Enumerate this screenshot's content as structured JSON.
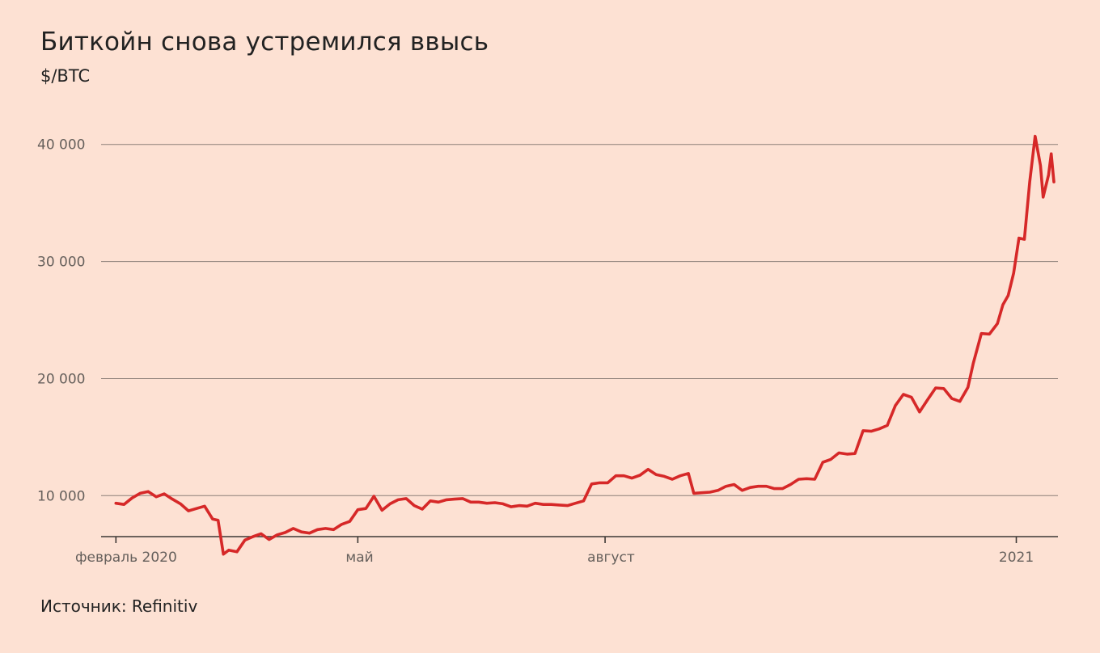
{
  "chart_data": {
    "type": "line",
    "title": "Биткойн снова устремился ввысь",
    "subtitle": "$/BTC",
    "source": "Источник: Refinitiv",
    "xlabel": "",
    "ylabel": "",
    "ylim": [
      6500,
      41500
    ],
    "yticks": [
      {
        "value": 10000,
        "label": "10 000"
      },
      {
        "value": 20000,
        "label": "20 000"
      },
      {
        "value": 30000,
        "label": "30 000"
      },
      {
        "value": 40000,
        "label": "40 000"
      }
    ],
    "xticks": [
      {
        "value": "2020-02-01",
        "label": "февраль 2020"
      },
      {
        "value": "2020-05-01",
        "label": "май"
      },
      {
        "value": "2020-08-01",
        "label": "август"
      },
      {
        "value": "2021-01-01",
        "label": "2021"
      }
    ],
    "grid": true,
    "legend": "none",
    "series": [
      {
        "color": "#d62828",
        "points": [
          [
            "2020-02-01",
            9350
          ],
          [
            "2020-02-04",
            9250
          ],
          [
            "2020-02-07",
            9800
          ],
          [
            "2020-02-10",
            10200
          ],
          [
            "2020-02-13",
            10350
          ],
          [
            "2020-02-16",
            9900
          ],
          [
            "2020-02-19",
            10150
          ],
          [
            "2020-02-22",
            9700
          ],
          [
            "2020-02-25",
            9300
          ],
          [
            "2020-02-28",
            8700
          ],
          [
            "2020-03-02",
            8900
          ],
          [
            "2020-03-05",
            9100
          ],
          [
            "2020-03-08",
            8000
          ],
          [
            "2020-03-10",
            7900
          ],
          [
            "2020-03-12",
            5000
          ],
          [
            "2020-03-14",
            5350
          ],
          [
            "2020-03-17",
            5200
          ],
          [
            "2020-03-20",
            6200
          ],
          [
            "2020-03-23",
            6500
          ],
          [
            "2020-03-26",
            6750
          ],
          [
            "2020-03-29",
            6250
          ],
          [
            "2020-04-01",
            6650
          ],
          [
            "2020-04-04",
            6850
          ],
          [
            "2020-04-07",
            7200
          ],
          [
            "2020-04-10",
            6900
          ],
          [
            "2020-04-13",
            6800
          ],
          [
            "2020-04-16",
            7100
          ],
          [
            "2020-04-19",
            7200
          ],
          [
            "2020-04-22",
            7100
          ],
          [
            "2020-04-25",
            7550
          ],
          [
            "2020-04-28",
            7800
          ],
          [
            "2020-05-01",
            8800
          ],
          [
            "2020-05-04",
            8900
          ],
          [
            "2020-05-07",
            9950
          ],
          [
            "2020-05-10",
            8750
          ],
          [
            "2020-05-13",
            9300
          ],
          [
            "2020-05-16",
            9650
          ],
          [
            "2020-05-19",
            9750
          ],
          [
            "2020-05-22",
            9150
          ],
          [
            "2020-05-25",
            8850
          ],
          [
            "2020-05-28",
            9550
          ],
          [
            "2020-05-31",
            9450
          ],
          [
            "2020-06-03",
            9650
          ],
          [
            "2020-06-06",
            9700
          ],
          [
            "2020-06-09",
            9750
          ],
          [
            "2020-06-12",
            9450
          ],
          [
            "2020-06-15",
            9450
          ],
          [
            "2020-06-18",
            9350
          ],
          [
            "2020-06-21",
            9400
          ],
          [
            "2020-06-24",
            9300
          ],
          [
            "2020-06-27",
            9050
          ],
          [
            "2020-06-30",
            9150
          ],
          [
            "2020-07-03",
            9100
          ],
          [
            "2020-07-06",
            9350
          ],
          [
            "2020-07-09",
            9250
          ],
          [
            "2020-07-12",
            9250
          ],
          [
            "2020-07-15",
            9200
          ],
          [
            "2020-07-18",
            9150
          ],
          [
            "2020-07-21",
            9350
          ],
          [
            "2020-07-24",
            9550
          ],
          [
            "2020-07-27",
            11000
          ],
          [
            "2020-07-30",
            11100
          ],
          [
            "2020-08-02",
            11100
          ],
          [
            "2020-08-05",
            11700
          ],
          [
            "2020-08-08",
            11700
          ],
          [
            "2020-08-11",
            11500
          ],
          [
            "2020-08-14",
            11750
          ],
          [
            "2020-08-17",
            12250
          ],
          [
            "2020-08-20",
            11800
          ],
          [
            "2020-08-23",
            11650
          ],
          [
            "2020-08-26",
            11400
          ],
          [
            "2020-08-29",
            11700
          ],
          [
            "2020-09-01",
            11900
          ],
          [
            "2020-09-03",
            10200
          ],
          [
            "2020-09-06",
            10250
          ],
          [
            "2020-09-09",
            10300
          ],
          [
            "2020-09-12",
            10450
          ],
          [
            "2020-09-15",
            10800
          ],
          [
            "2020-09-18",
            10950
          ],
          [
            "2020-09-21",
            10450
          ],
          [
            "2020-09-24",
            10700
          ],
          [
            "2020-09-27",
            10800
          ],
          [
            "2020-09-30",
            10800
          ],
          [
            "2020-10-03",
            10600
          ],
          [
            "2020-10-06",
            10600
          ],
          [
            "2020-10-09",
            10950
          ],
          [
            "2020-10-12",
            11400
          ],
          [
            "2020-10-15",
            11450
          ],
          [
            "2020-10-18",
            11400
          ],
          [
            "2020-10-21",
            12850
          ],
          [
            "2020-10-24",
            13100
          ],
          [
            "2020-10-27",
            13650
          ],
          [
            "2020-10-30",
            13550
          ],
          [
            "2020-11-02",
            13600
          ],
          [
            "2020-11-05",
            15550
          ],
          [
            "2020-11-08",
            15500
          ],
          [
            "2020-11-11",
            15700
          ],
          [
            "2020-11-14",
            16000
          ],
          [
            "2020-11-17",
            17700
          ],
          [
            "2020-11-20",
            18650
          ],
          [
            "2020-11-23",
            18400
          ],
          [
            "2020-11-26",
            17150
          ],
          [
            "2020-11-29",
            18200
          ],
          [
            "2020-12-02",
            19200
          ],
          [
            "2020-12-05",
            19150
          ],
          [
            "2020-12-08",
            18300
          ],
          [
            "2020-12-11",
            18050
          ],
          [
            "2020-12-14",
            19250
          ],
          [
            "2020-12-16",
            21300
          ],
          [
            "2020-12-19",
            23850
          ],
          [
            "2020-12-22",
            23800
          ],
          [
            "2020-12-25",
            24700
          ],
          [
            "2020-12-27",
            26300
          ],
          [
            "2020-12-29",
            27100
          ],
          [
            "2020-12-31",
            29000
          ],
          [
            "2021-01-02",
            32000
          ],
          [
            "2021-01-04",
            31900
          ],
          [
            "2021-01-06",
            36800
          ],
          [
            "2021-01-08",
            40700
          ],
          [
            "2021-01-10",
            38200
          ],
          [
            "2021-01-11",
            35500
          ],
          [
            "2021-01-13",
            37400
          ],
          [
            "2021-01-14",
            39200
          ],
          [
            "2021-01-15",
            36800
          ]
        ]
      }
    ]
  }
}
